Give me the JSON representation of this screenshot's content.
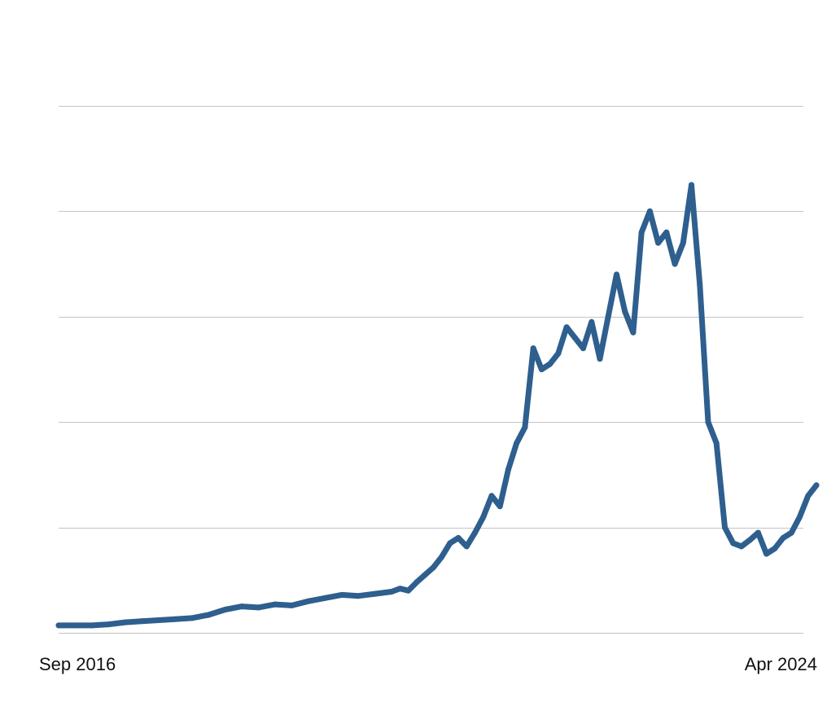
{
  "chart_data": {
    "type": "line",
    "title": "",
    "xlabel": "",
    "ylabel": "",
    "grid": true,
    "legend": "none",
    "colors": {
      "series": "#2e5f8e",
      "grid": "#c4c4c4",
      "text": "#111111",
      "background": "#ffffff"
    },
    "x_tick_labels": [
      "Sep 2016",
      "Apr 2024"
    ],
    "x_range": [
      "2016-09",
      "2024-04"
    ],
    "y_range": [
      0,
      5
    ],
    "y_gridlines": [
      0,
      1,
      2,
      3,
      4,
      5
    ],
    "y_tick_labels_shown": false,
    "series": [
      {
        "name": "",
        "x": [
          "2016-09",
          "2016-11",
          "2017-01",
          "2017-03",
          "2017-05",
          "2017-07",
          "2017-09",
          "2017-11",
          "2018-01",
          "2018-03",
          "2018-05",
          "2018-07",
          "2018-09",
          "2018-11",
          "2019-01",
          "2019-03",
          "2019-05",
          "2019-07",
          "2019-09",
          "2019-11",
          "2020-01",
          "2020-02",
          "2020-03",
          "2020-04",
          "2020-05",
          "2020-06",
          "2020-07",
          "2020-08",
          "2020-09",
          "2020-10",
          "2020-11",
          "2020-12",
          "2021-01",
          "2021-02",
          "2021-03",
          "2021-04",
          "2021-05",
          "2021-06",
          "2021-07",
          "2021-08",
          "2021-09",
          "2021-10",
          "2021-11",
          "2021-12",
          "2022-01",
          "2022-02",
          "2022-03",
          "2022-04",
          "2022-05",
          "2022-06",
          "2022-07",
          "2022-08",
          "2022-09",
          "2022-10",
          "2022-11",
          "2022-12",
          "2023-01",
          "2023-02",
          "2023-03",
          "2023-04",
          "2023-05",
          "2023-06",
          "2023-07",
          "2023-08",
          "2023-09",
          "2023-10",
          "2023-11",
          "2023-12",
          "2024-01",
          "2024-02",
          "2024-03",
          "2024-04"
        ],
        "values": [
          0.07,
          0.07,
          0.07,
          0.08,
          0.1,
          0.11,
          0.12,
          0.13,
          0.14,
          0.17,
          0.22,
          0.25,
          0.24,
          0.27,
          0.26,
          0.3,
          0.33,
          0.36,
          0.35,
          0.37,
          0.39,
          0.42,
          0.4,
          0.48,
          0.55,
          0.62,
          0.72,
          0.85,
          0.9,
          0.82,
          0.95,
          1.1,
          1.3,
          1.2,
          1.55,
          1.8,
          1.95,
          2.7,
          2.5,
          2.55,
          2.65,
          2.9,
          2.8,
          2.7,
          2.95,
          2.6,
          3.0,
          3.4,
          3.05,
          2.85,
          3.8,
          4.0,
          3.7,
          3.8,
          3.5,
          3.7,
          4.25,
          3.3,
          2.0,
          1.8,
          1.0,
          0.85,
          0.82,
          0.88,
          0.95,
          0.75,
          0.8,
          0.9,
          0.95,
          1.1,
          1.3,
          1.4
        ]
      }
    ]
  }
}
